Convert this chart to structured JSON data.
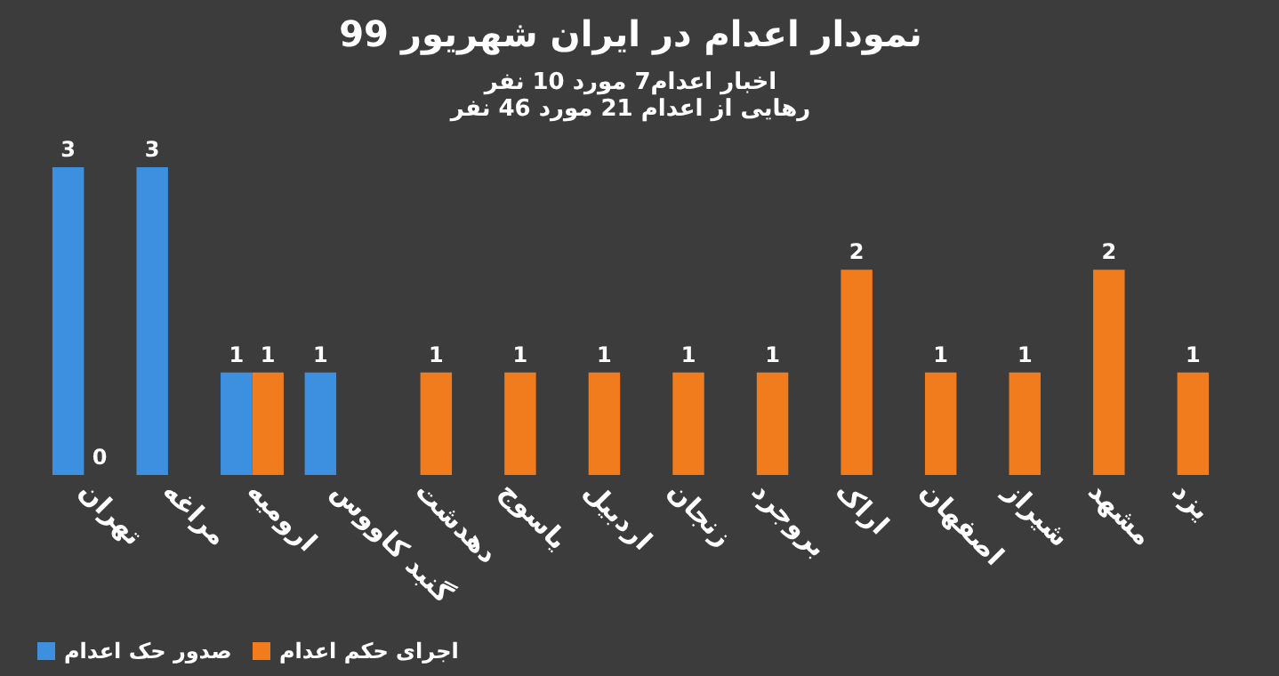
{
  "chart_data": {
    "type": "bar",
    "title": "نمودار اعدام در ایران شهریور 99",
    "subtitle": "اخبار اعدام7 مورد 10 نفر\nرهایی از اعدام 21 مورد 46 نفر",
    "categories": [
      "تهران",
      "مراغه",
      "ارومیه",
      "گنبد کاووس",
      "دهدشت",
      "یاسوج",
      "اردبیل",
      "زنجان",
      "بروجرد",
      "اراک",
      "اصفهان",
      "شیراز",
      "مشهد",
      "یزد"
    ],
    "series": [
      {
        "name": "صدور حک اعدام",
        "color": "#3d8fe0",
        "values": [
          3,
          3,
          1,
          1,
          null,
          null,
          null,
          null,
          null,
          null,
          null,
          null,
          null,
          null
        ]
      },
      {
        "name": "اجرای حکم اعدام",
        "color": "#f07c1e",
        "values": [
          0,
          null,
          1,
          null,
          1,
          1,
          1,
          1,
          1,
          2,
          1,
          1,
          2,
          1
        ]
      }
    ],
    "data_labels": true,
    "grid": false,
    "legend": "bottom left",
    "tick_labels": "x"
  }
}
